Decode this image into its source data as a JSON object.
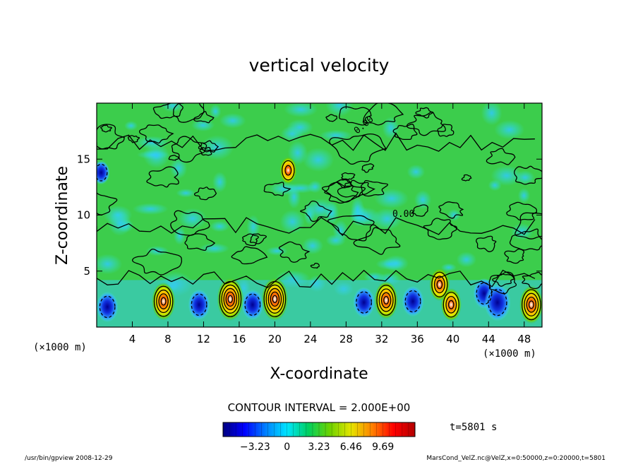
{
  "chart_data": {
    "type": "heatmap",
    "title": "vertical velocity",
    "xlabel": "X-coordinate",
    "ylabel": "Z-coordinate",
    "x_unit_left": "(×1000 m)",
    "x_unit_right": "(×1000 m)",
    "xlim": [
      0,
      50
    ],
    "ylim": [
      0,
      20
    ],
    "xticks": [
      4,
      8,
      12,
      16,
      20,
      24,
      28,
      32,
      36,
      40,
      44,
      48
    ],
    "yticks": [
      5,
      10,
      15
    ],
    "contour_interval_label": "CONTOUR INTERVAL = 2.000E+00",
    "contour_zero_label": "0.00",
    "time_label": "t=5801 s",
    "colorbar": {
      "range": [
        -6.46,
        12.92
      ],
      "ticks": [
        -3.23,
        0,
        3.23,
        6.46,
        9.69
      ],
      "tick_labels": [
        "−3.23",
        "0",
        "3.23",
        "6.46",
        "9.69"
      ],
      "colors": [
        "#00007f",
        "#0000ff",
        "#0080ff",
        "#00e5ff",
        "#00d060",
        "#6cd200",
        "#e5e500",
        "#ff8000",
        "#ff0000",
        "#b20000"
      ]
    },
    "updraft_cores": [
      {
        "x": 7.5,
        "z": 2.3,
        "w": 8
      },
      {
        "x": 15.0,
        "z": 2.5,
        "w": 10
      },
      {
        "x": 20.0,
        "z": 2.5,
        "w": 10
      },
      {
        "x": 32.5,
        "z": 2.4,
        "w": 8
      },
      {
        "x": 38.5,
        "z": 3.8,
        "w": 6
      },
      {
        "x": 39.8,
        "z": 2.0,
        "w": 6
      },
      {
        "x": 48.8,
        "z": 2.0,
        "w": 8
      },
      {
        "x": 21.5,
        "z": 14.0,
        "w": 4
      }
    ],
    "downdraft_cores": [
      {
        "x": 1.2,
        "z": 1.8,
        "w": -4
      },
      {
        "x": 11.5,
        "z": 2.0,
        "w": -4
      },
      {
        "x": 17.5,
        "z": 2.0,
        "w": -4
      },
      {
        "x": 30.0,
        "z": 2.2,
        "w": -4
      },
      {
        "x": 35.5,
        "z": 2.3,
        "w": -4
      },
      {
        "x": 43.5,
        "z": 3.0,
        "w": -4
      },
      {
        "x": 45.0,
        "z": 2.2,
        "w": -6
      },
      {
        "x": 0.5,
        "z": 13.8,
        "w": -2
      }
    ]
  },
  "footer": {
    "left": "/usr/bin/gpview   2008-12-29",
    "right": "MarsCond_VelZ.nc@VelZ,x=0:50000,z=0:20000,t=5801"
  }
}
